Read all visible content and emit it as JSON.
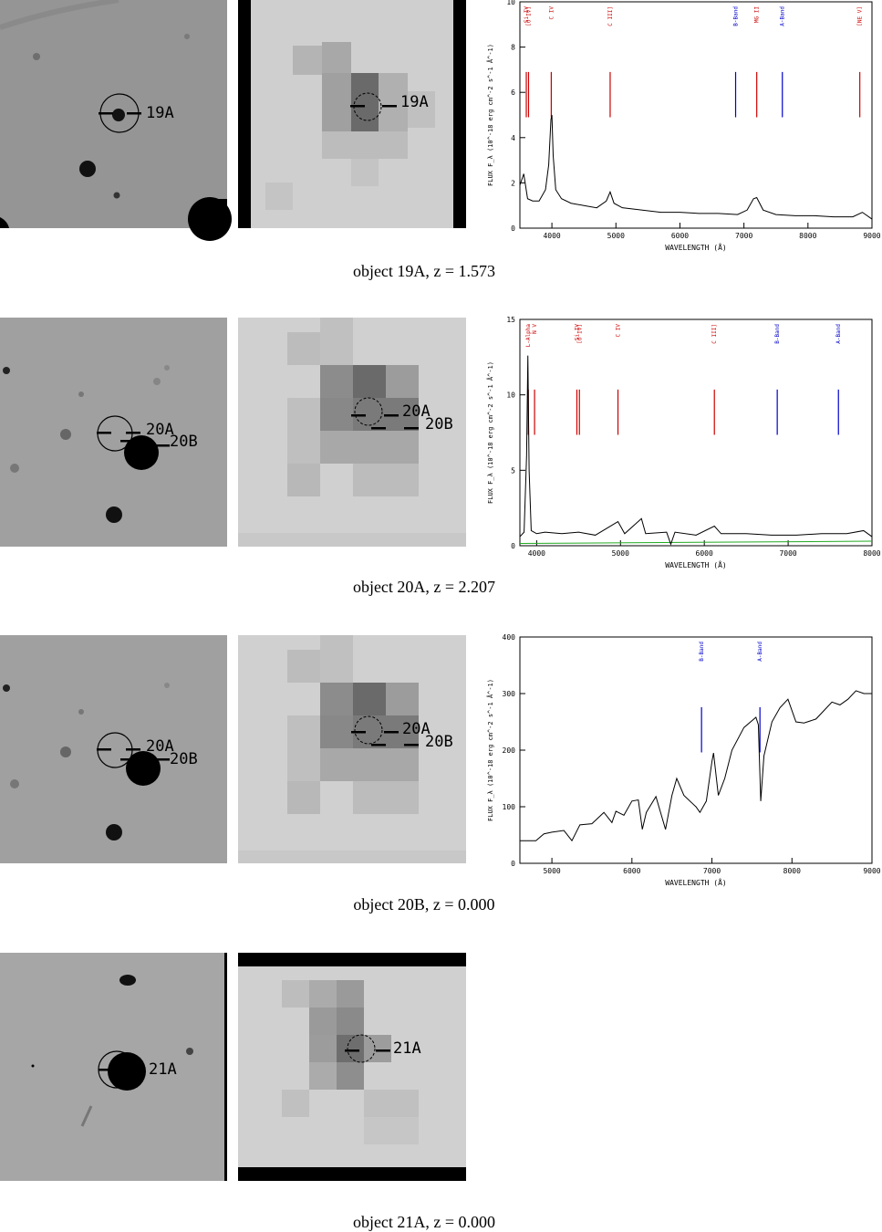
{
  "rows": [
    {
      "caption": "object 19A, z = 1.573",
      "labels": [
        "19A"
      ],
      "spectrum": {
        "type": "line",
        "xlim": [
          3500,
          9000
        ],
        "ylim": [
          0,
          10
        ],
        "xticks": [
          4000,
          5000,
          6000,
          7000,
          8000,
          9000
        ],
        "yticks": [
          0,
          2,
          4,
          6,
          8,
          10
        ],
        "xlabel": "WAVELENGTH (Å)",
        "ylabel": "FLUX F_λ (10^-18 erg cm^-2 s^-1 Å^-1)",
        "lines": [
          {
            "label": "Si IV",
            "x": 3600,
            "color": "#cc0000"
          },
          {
            "label": "[O IV]",
            "x": 3635,
            "color": "#cc0000"
          },
          {
            "label": "C IV",
            "x": 3990,
            "color": "#cc0000"
          },
          {
            "label": "C III]",
            "x": 4910,
            "color": "#cc0000"
          },
          {
            "label": "B-Band",
            "x": 6870,
            "color": "#0000cc"
          },
          {
            "label": "MG II",
            "x": 7200,
            "color": "#cc0000"
          },
          {
            "label": "A-Band",
            "x": 7600,
            "color": "#0000cc"
          },
          {
            "label": "[NE V]",
            "x": 8810,
            "color": "#cc0000"
          }
        ],
        "points": [
          [
            3500,
            1.9
          ],
          [
            3560,
            2.4
          ],
          [
            3620,
            1.3
          ],
          [
            3700,
            1.2
          ],
          [
            3800,
            1.2
          ],
          [
            3900,
            1.7
          ],
          [
            3950,
            2.8
          ],
          [
            3985,
            4.8
          ],
          [
            4000,
            5.0
          ],
          [
            4020,
            3.2
          ],
          [
            4060,
            1.7
          ],
          [
            4150,
            1.3
          ],
          [
            4300,
            1.1
          ],
          [
            4500,
            1.0
          ],
          [
            4700,
            0.9
          ],
          [
            4850,
            1.2
          ],
          [
            4910,
            1.6
          ],
          [
            4970,
            1.1
          ],
          [
            5100,
            0.9
          ],
          [
            5400,
            0.8
          ],
          [
            5700,
            0.7
          ],
          [
            6000,
            0.7
          ],
          [
            6300,
            0.65
          ],
          [
            6600,
            0.65
          ],
          [
            6900,
            0.6
          ],
          [
            7050,
            0.8
          ],
          [
            7150,
            1.3
          ],
          [
            7200,
            1.35
          ],
          [
            7300,
            0.8
          ],
          [
            7500,
            0.6
          ],
          [
            7800,
            0.55
          ],
          [
            8100,
            0.55
          ],
          [
            8400,
            0.5
          ],
          [
            8700,
            0.5
          ],
          [
            8850,
            0.7
          ],
          [
            9000,
            0.4
          ]
        ]
      }
    },
    {
      "caption": "object 20A, z = 2.207",
      "labels": [
        "20A",
        "20B"
      ],
      "spectrum": {
        "type": "line",
        "xlim": [
          3800,
          8000
        ],
        "ylim": [
          0,
          15
        ],
        "xticks": [
          4000,
          5000,
          6000,
          7000,
          8000
        ],
        "yticks": [
          0,
          5,
          10,
          15
        ],
        "xlabel": "WAVELENGTH (Å)",
        "ylabel": "FLUX F_λ (10^-18 erg cm^-2 s^-1 Å^-1)",
        "lines": [
          {
            "label": "L-Alpha",
            "x": 3900,
            "color": "#cc0000"
          },
          {
            "label": "N V",
            "x": 3975,
            "color": "#cc0000"
          },
          {
            "label": "Si IV",
            "x": 4480,
            "color": "#cc0000"
          },
          {
            "label": "[O IV]",
            "x": 4510,
            "color": "#cc0000"
          },
          {
            "label": "C IV",
            "x": 4970,
            "color": "#cc0000"
          },
          {
            "label": "C III]",
            "x": 6120,
            "color": "#cc0000"
          },
          {
            "label": "B-Band",
            "x": 6870,
            "color": "#0000cc"
          },
          {
            "label": "A-Band",
            "x": 7600,
            "color": "#0000cc"
          }
        ],
        "points": [
          [
            3800,
            0.6
          ],
          [
            3850,
            0.9
          ],
          [
            3880,
            6.0
          ],
          [
            3895,
            12.6
          ],
          [
            3910,
            5.0
          ],
          [
            3935,
            1.0
          ],
          [
            4000,
            0.8
          ],
          [
            4100,
            0.9
          ],
          [
            4300,
            0.8
          ],
          [
            4500,
            0.9
          ],
          [
            4700,
            0.7
          ],
          [
            4970,
            1.6
          ],
          [
            5050,
            0.8
          ],
          [
            5250,
            1.8
          ],
          [
            5300,
            0.8
          ],
          [
            5550,
            0.9
          ],
          [
            5600,
            0.1
          ],
          [
            5650,
            0.9
          ],
          [
            5900,
            0.7
          ],
          [
            6120,
            1.3
          ],
          [
            6200,
            0.8
          ],
          [
            6500,
            0.8
          ],
          [
            6800,
            0.7
          ],
          [
            7100,
            0.7
          ],
          [
            7400,
            0.8
          ],
          [
            7700,
            0.8
          ],
          [
            7900,
            1.0
          ],
          [
            8000,
            0.6
          ]
        ],
        "baseline": [
          [
            3800,
            0.15
          ],
          [
            8000,
            0.3
          ]
        ]
      }
    },
    {
      "caption": "object 20B, z = 0.000",
      "labels": [
        "20A",
        "20B"
      ],
      "spectrum": {
        "type": "line",
        "xlim": [
          4600,
          9000
        ],
        "ylim": [
          0,
          400
        ],
        "xticks": [
          5000,
          6000,
          7000,
          8000,
          9000
        ],
        "yticks": [
          0,
          100,
          200,
          300,
          400
        ],
        "xlabel": "WAVELENGTH (Å)",
        "ylabel": "FLUX F_λ (10^-18 erg cm^-2 s^-1 Å^-1)",
        "lines": [
          {
            "label": "B-Band",
            "x": 6870,
            "color": "#0000cc"
          },
          {
            "label": "A-Band",
            "x": 7600,
            "color": "#0000cc"
          }
        ],
        "points": [
          [
            4600,
            40
          ],
          [
            4800,
            40
          ],
          [
            4900,
            52
          ],
          [
            5000,
            55
          ],
          [
            5150,
            58
          ],
          [
            5250,
            40
          ],
          [
            5350,
            68
          ],
          [
            5500,
            70
          ],
          [
            5650,
            90
          ],
          [
            5750,
            72
          ],
          [
            5800,
            92
          ],
          [
            5900,
            85
          ],
          [
            6000,
            110
          ],
          [
            6080,
            112
          ],
          [
            6130,
            60
          ],
          [
            6180,
            90
          ],
          [
            6300,
            118
          ],
          [
            6420,
            60
          ],
          [
            6500,
            120
          ],
          [
            6560,
            150
          ],
          [
            6650,
            120
          ],
          [
            6800,
            100
          ],
          [
            6850,
            90
          ],
          [
            6930,
            110
          ],
          [
            7000,
            180
          ],
          [
            7020,
            195
          ],
          [
            7080,
            120
          ],
          [
            7160,
            150
          ],
          [
            7250,
            200
          ],
          [
            7400,
            240
          ],
          [
            7550,
            258
          ],
          [
            7580,
            245
          ],
          [
            7610,
            110
          ],
          [
            7650,
            190
          ],
          [
            7750,
            250
          ],
          [
            7850,
            275
          ],
          [
            7950,
            290
          ],
          [
            8050,
            250
          ],
          [
            8150,
            248
          ],
          [
            8300,
            255
          ],
          [
            8400,
            270
          ],
          [
            8500,
            285
          ],
          [
            8600,
            280
          ],
          [
            8700,
            290
          ],
          [
            8800,
            305
          ],
          [
            8900,
            300
          ],
          [
            9000,
            300
          ]
        ]
      }
    },
    {
      "caption": "object 21A, z = 0.000",
      "labels": [
        "21A"
      ]
    }
  ]
}
